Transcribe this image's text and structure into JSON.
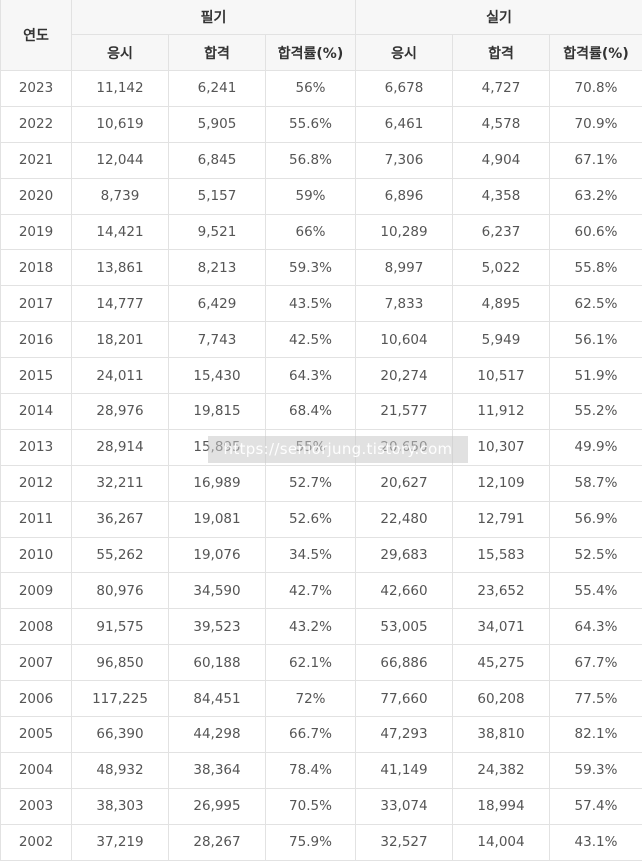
{
  "header": {
    "year": "연도",
    "written": "필기",
    "practical": "실기",
    "applicants": "응시",
    "passed": "합격",
    "pass_rate": "합격률(%)"
  },
  "rows": [
    [
      "2023",
      "11,142",
      "6,241",
      "56%",
      "6,678",
      "4,727",
      "70.8%"
    ],
    [
      "2022",
      "10,619",
      "5,905",
      "55.6%",
      "6,461",
      "4,578",
      "70.9%"
    ],
    [
      "2021",
      "12,044",
      "6,845",
      "56.8%",
      "7,306",
      "4,904",
      "67.1%"
    ],
    [
      "2020",
      "8,739",
      "5,157",
      "59%",
      "6,896",
      "4,358",
      "63.2%"
    ],
    [
      "2019",
      "14,421",
      "9,521",
      "66%",
      "10,289",
      "6,237",
      "60.6%"
    ],
    [
      "2018",
      "13,861",
      "8,213",
      "59.3%",
      "8,997",
      "5,022",
      "55.8%"
    ],
    [
      "2017",
      "14,777",
      "6,429",
      "43.5%",
      "7,833",
      "4,895",
      "62.5%"
    ],
    [
      "2016",
      "18,201",
      "7,743",
      "42.5%",
      "10,604",
      "5,949",
      "56.1%"
    ],
    [
      "2015",
      "24,011",
      "15,430",
      "64.3%",
      "20,274",
      "10,517",
      "51.9%"
    ],
    [
      "2014",
      "28,976",
      "19,815",
      "68.4%",
      "21,577",
      "11,912",
      "55.2%"
    ],
    [
      "2013",
      "28,914",
      "15,895",
      "55%",
      "20,650",
      "10,307",
      "49.9%"
    ],
    [
      "2012",
      "32,211",
      "16,989",
      "52.7%",
      "20,627",
      "12,109",
      "58.7%"
    ],
    [
      "2011",
      "36,267",
      "19,081",
      "52.6%",
      "22,480",
      "12,791",
      "56.9%"
    ],
    [
      "2010",
      "55,262",
      "19,076",
      "34.5%",
      "29,683",
      "15,583",
      "52.5%"
    ],
    [
      "2009",
      "80,976",
      "34,590",
      "42.7%",
      "42,660",
      "23,652",
      "55.4%"
    ],
    [
      "2008",
      "91,575",
      "39,523",
      "43.2%",
      "53,005",
      "34,071",
      "64.3%"
    ],
    [
      "2007",
      "96,850",
      "60,188",
      "62.1%",
      "66,886",
      "45,275",
      "67.7%"
    ],
    [
      "2006",
      "117,225",
      "84,451",
      "72%",
      "77,660",
      "60,208",
      "77.5%"
    ],
    [
      "2005",
      "66,390",
      "44,298",
      "66.7%",
      "47,293",
      "38,810",
      "82.1%"
    ],
    [
      "2004",
      "48,932",
      "38,364",
      "78.4%",
      "41,149",
      "24,382",
      "59.3%"
    ],
    [
      "2003",
      "38,303",
      "26,995",
      "70.5%",
      "33,074",
      "18,994",
      "57.4%"
    ],
    [
      "2002",
      "37,219",
      "28,267",
      "75.9%",
      "32,527",
      "14,004",
      "43.1%"
    ]
  ],
  "watermark": "https://seniorjung.tistory.com"
}
